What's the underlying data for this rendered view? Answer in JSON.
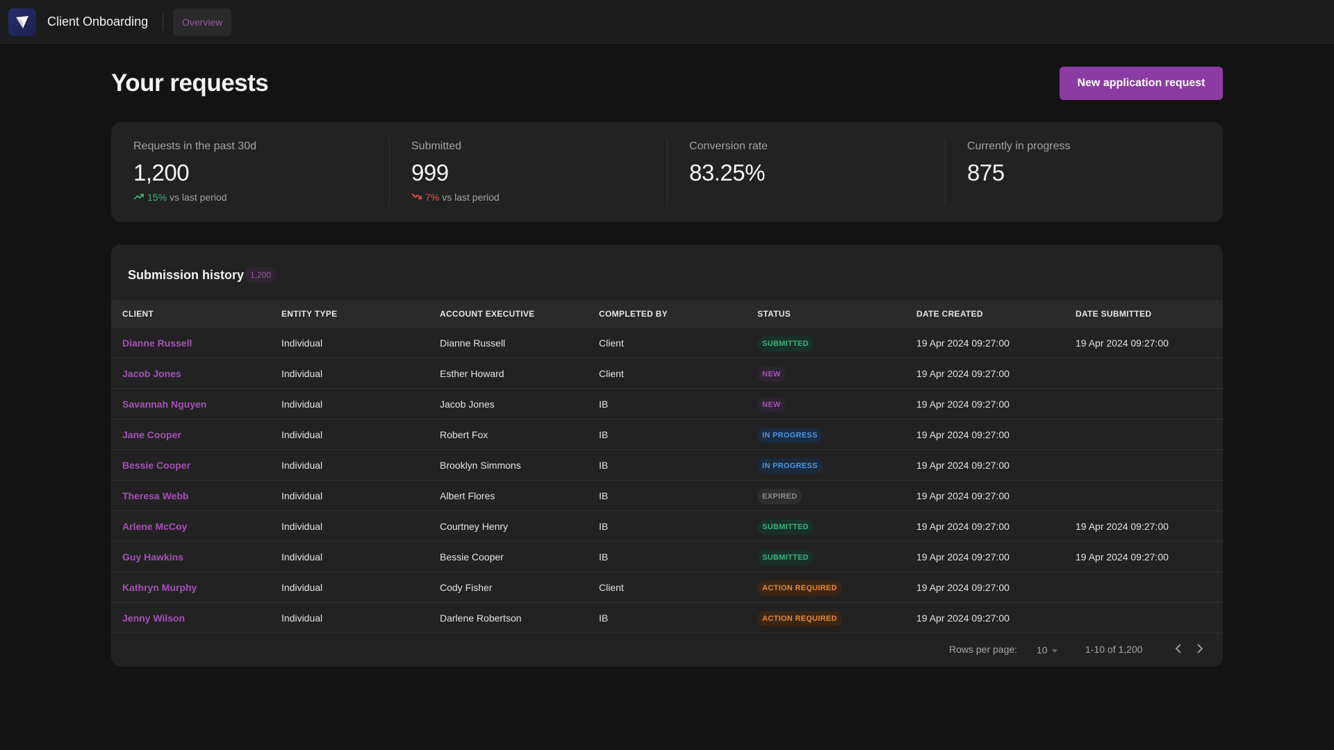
{
  "app": {
    "title": "Client Onboarding",
    "nav_tab": "Overview"
  },
  "header": {
    "title": "Your requests",
    "primary_button": "New application request"
  },
  "stats": [
    {
      "label": "Requests in the past 30d",
      "value": "1,200",
      "trend_value": "15%",
      "trend_dir": "up",
      "trend_suffix": "vs last period"
    },
    {
      "label": "Submitted",
      "value": "999",
      "trend_value": "7%",
      "trend_dir": "down",
      "trend_suffix": "vs last period"
    },
    {
      "label": "Conversion rate",
      "value": "83.25%"
    },
    {
      "label": "Currently in progress",
      "value": "875"
    }
  ],
  "table": {
    "title": "Submission history",
    "count": "1,200",
    "columns": [
      "CLIENT",
      "ENTITY TYPE",
      "ACCOUNT EXECUTIVE",
      "COMPLETED BY",
      "STATUS",
      "DATE CREATED",
      "DATE SUBMITTED"
    ],
    "rows": [
      {
        "client": "Dianne Russell",
        "entity": "Individual",
        "exec": "Dianne Russell",
        "completed_by": "Client",
        "status": "SUBMITTED",
        "status_kind": "submitted",
        "created": "19 Apr 2024 09:27:00",
        "submitted": "19 Apr 2024 09:27:00"
      },
      {
        "client": "Jacob Jones",
        "entity": "Individual",
        "exec": "Esther Howard",
        "completed_by": "Client",
        "status": "NEW",
        "status_kind": "new",
        "created": "19 Apr 2024 09:27:00",
        "submitted": ""
      },
      {
        "client": "Savannah Nguyen",
        "entity": "Individual",
        "exec": "Jacob Jones",
        "completed_by": "IB",
        "status": "NEW",
        "status_kind": "new",
        "created": "19 Apr 2024 09:27:00",
        "submitted": ""
      },
      {
        "client": "Jane Cooper",
        "entity": "Individual",
        "exec": "Robert Fox",
        "completed_by": "IB",
        "status": "IN PROGRESS",
        "status_kind": "progress",
        "created": "19 Apr 2024 09:27:00",
        "submitted": ""
      },
      {
        "client": "Bessie Cooper",
        "entity": "Individual",
        "exec": "Brooklyn Simmons",
        "completed_by": "IB",
        "status": "IN PROGRESS",
        "status_kind": "progress",
        "created": "19 Apr 2024 09:27:00",
        "submitted": ""
      },
      {
        "client": "Theresa Webb",
        "entity": "Individual",
        "exec": "Albert Flores",
        "completed_by": "IB",
        "status": "EXPIRED",
        "status_kind": "expired",
        "created": "19 Apr 2024 09:27:00",
        "submitted": ""
      },
      {
        "client": "Arlene McCoy",
        "entity": "Individual",
        "exec": "Courtney Henry",
        "completed_by": "IB",
        "status": "SUBMITTED",
        "status_kind": "submitted",
        "created": "19 Apr 2024 09:27:00",
        "submitted": "19 Apr 2024 09:27:00"
      },
      {
        "client": "Guy Hawkins",
        "entity": "Individual",
        "exec": "Bessie Cooper",
        "completed_by": "IB",
        "status": "SUBMITTED",
        "status_kind": "submitted",
        "created": "19 Apr 2024 09:27:00",
        "submitted": "19 Apr 2024 09:27:00"
      },
      {
        "client": "Kathryn Murphy",
        "entity": "Individual",
        "exec": "Cody Fisher",
        "completed_by": "Client",
        "status": "ACTION REQUIRED",
        "status_kind": "action",
        "created": "19 Apr 2024 09:27:00",
        "submitted": ""
      },
      {
        "client": "Jenny Wilson",
        "entity": "Individual",
        "exec": "Darlene Robertson",
        "completed_by": "IB",
        "status": "ACTION REQUIRED",
        "status_kind": "action",
        "created": "19 Apr 2024 09:27:00",
        "submitted": ""
      }
    ]
  },
  "pagination": {
    "rows_per_page_label": "Rows per page:",
    "rows_per_page": "10",
    "range": "1-10 of 1,200",
    "prev_icon": "chevron-left-icon",
    "next_icon": "chevron-right-icon"
  },
  "colors": {
    "accent": "#8c3ba3",
    "link": "#a452b6",
    "trend_up": "#3bb27a",
    "trend_down": "#e0544d"
  }
}
